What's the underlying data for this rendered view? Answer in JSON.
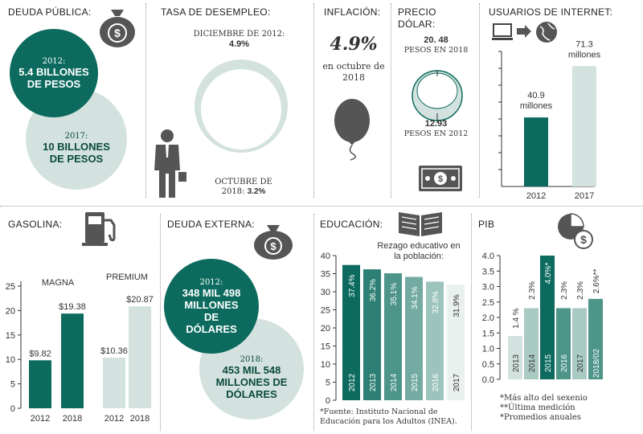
{
  "colors": {
    "dark": "#0c6b5e",
    "light": "#d3e2de",
    "gray": "#555555",
    "grid": "#999999"
  },
  "deuda_publica": {
    "title": "DEUDA PÚBLICA:",
    "icon": "money-bag-icon",
    "y2012_year": "2012:",
    "y2012_value": "5.4 BILLONES DE PESOS",
    "y2017_year": "2017:",
    "y2017_value": "10 BILLONES DE PESOS"
  },
  "desempleo": {
    "title": "TASA DE DESEMPLEO:",
    "top_label": "DICIEMBRE DE 2012:",
    "top_value": "4.9%",
    "bottom_label": "OCTUBRE DE",
    "bottom_label2": "2018:",
    "bottom_value": "3.2%",
    "icon": "businessman-icon"
  },
  "inflacion": {
    "title": "INFLACIÓN:",
    "value": "4.9%",
    "caption": "en octubre de 2018",
    "icon": "balloon-icon"
  },
  "dolar": {
    "title": "PRECIO DÓLAR:",
    "top_value": "20. 48",
    "top_caption": "PESOS EN 2018",
    "bottom_value": "12.93",
    "bottom_caption": "PESOS EN 2012",
    "icon": "banknote-icon"
  },
  "internet": {
    "title": "USUARIOS DE INTERNET:",
    "icon": "computer-globe-icon"
  },
  "gasolina": {
    "title": "GASOLINA:",
    "icon": "gas-pump-icon"
  },
  "deuda_externa": {
    "title": "DEUDA EXTERNA:",
    "icon": "money-bag-icon",
    "y2012_year": "2012:",
    "y2012_value": "348 MIL 498 MILLONES DE DÓLARES",
    "y2018_year": "2018:",
    "y2018_value": "453 MIL 548 MILLONES DE DÓLARES"
  },
  "educacion": {
    "title": "EDUCACIÓN:",
    "subtitle": "Rezago educativo en la población:",
    "source": "*Fuente: Instituto Nacional de Educación para los Adultos (INEA).",
    "icon": "open-book-icon"
  },
  "pib": {
    "title": "PIB",
    "icon": "pie-dollar-icon",
    "notes": [
      "*Más alto del sexenio",
      "**Última medición",
      "*Promedios anuales"
    ]
  },
  "chart_data": [
    {
      "id": "internet",
      "type": "bar",
      "categories": [
        "2012",
        "2017"
      ],
      "values": [
        40.9,
        71.3
      ],
      "data_labels": [
        "40.9 millones",
        "71.3 millones"
      ],
      "ylim": [
        0,
        80
      ],
      "yticks": [
        10,
        20,
        30,
        40,
        50,
        60,
        70,
        80
      ],
      "colors": [
        "#0c6b5e",
        "#d3e2de"
      ]
    },
    {
      "id": "gasolina",
      "type": "bar",
      "groups": [
        "MAGNA",
        "PREMIUM"
      ],
      "categories": [
        "2012",
        "2018",
        "2012",
        "2018"
      ],
      "values": [
        9.82,
        19.38,
        10.36,
        20.87
      ],
      "data_labels": [
        "$9.82",
        "$19.38",
        "$10.36",
        "$20.87"
      ],
      "ylim": [
        0,
        25
      ],
      "yticks": [
        0,
        5,
        10,
        15,
        20,
        25
      ],
      "colors": [
        "#0c6b5e",
        "#0c6b5e",
        "#d3e2de",
        "#d3e2de"
      ]
    },
    {
      "id": "educacion",
      "type": "bar",
      "categories": [
        "2012",
        "2013",
        "2014",
        "2015",
        "2016",
        "2017"
      ],
      "values": [
        37.4,
        36.2,
        35.1,
        34.1,
        32.8,
        31.9
      ],
      "data_labels": [
        "37.4%",
        "36.2%",
        "35.1%",
        "34.1%",
        "32.8%",
        "31.9%"
      ],
      "ylim": [
        0,
        40
      ],
      "yticks": [
        0,
        5,
        10,
        15,
        20,
        25,
        30,
        35,
        40
      ],
      "colors": [
        "#0c6b5e",
        "#2c7f72",
        "#4d9489",
        "#73aba2",
        "#9cc4bd",
        "#e9f0ee"
      ]
    },
    {
      "id": "pib",
      "type": "bar",
      "categories": [
        "2013",
        "2014",
        "2015",
        "2016",
        "2017",
        "2018/02"
      ],
      "values": [
        1.4,
        2.3,
        4.0,
        2.3,
        2.3,
        2.6
      ],
      "data_labels": [
        "1.4 %",
        "2.3%",
        "4.0%*",
        "2.3%",
        "2.3%",
        "2.6%**"
      ],
      "ylim": [
        0,
        4.0
      ],
      "yticks": [
        "0.0",
        "0.5",
        "1.0",
        "1.5",
        "2.0",
        "2.5",
        "3.0",
        "3.5",
        "4.0"
      ],
      "colors": [
        "#d3e2de",
        "#a9c9c3",
        "#0c6b5e",
        "#4d9489",
        "#a9c9c3",
        "#4d9489"
      ]
    }
  ]
}
